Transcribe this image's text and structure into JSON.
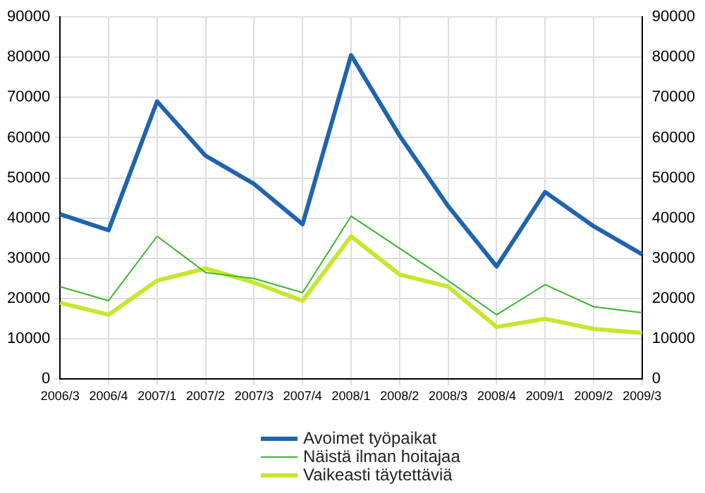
{
  "chart_data": {
    "type": "line",
    "categories": [
      "2006/3",
      "2006/4",
      "2007/1",
      "2007/2",
      "2007/3",
      "2007/4",
      "2008/1",
      "2008/2",
      "2008/3",
      "2008/4",
      "2009/1",
      "2009/2",
      "2009/3"
    ],
    "series": [
      {
        "name": "Avoimet työpaikat",
        "color": "#1f64ad",
        "values": [
          41000,
          37000,
          69000,
          55500,
          48500,
          38500,
          80500,
          60500,
          43000,
          28000,
          46500,
          38000,
          31000
        ]
      },
      {
        "name": "Näistä ilman hoitajaa",
        "color": "#3cb62e",
        "values": [
          23000,
          19500,
          35500,
          26500,
          25000,
          21500,
          40500,
          32500,
          24500,
          16000,
          23500,
          18000,
          16500
        ]
      },
      {
        "name": "Vaikeasti täytettäviä",
        "color": "#c8e62d",
        "values": [
          19000,
          16000,
          24500,
          27500,
          24000,
          19500,
          35500,
          26000,
          23000,
          13000,
          15000,
          12500,
          11500
        ]
      }
    ],
    "ylim": [
      0,
      90000
    ],
    "yticks": [
      0,
      10000,
      20000,
      30000,
      40000,
      50000,
      60000,
      70000,
      80000,
      90000
    ],
    "y2lim": [
      0,
      90000
    ],
    "y2ticks": [
      0,
      10000,
      20000,
      30000,
      40000,
      50000,
      60000,
      70000,
      80000,
      90000
    ],
    "grid": true,
    "legend": "bottom",
    "marker": "none",
    "line_style": "solid"
  }
}
